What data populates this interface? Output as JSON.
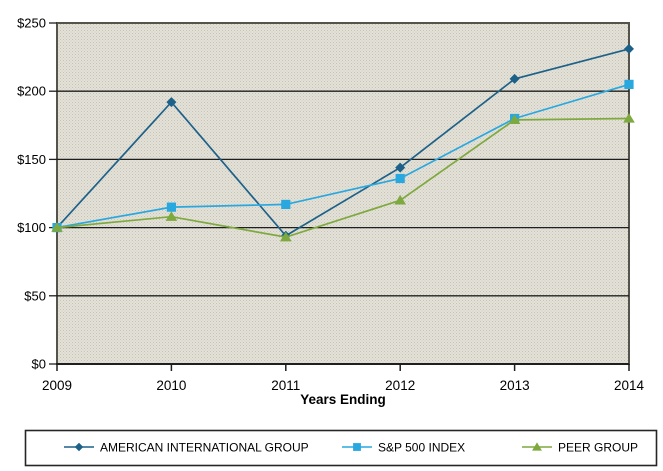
{
  "chart_data": {
    "type": "line",
    "title": "",
    "xlabel": "Years Ending",
    "ylabel": "",
    "categories": [
      "2009",
      "2010",
      "2011",
      "2012",
      "2013",
      "2014"
    ],
    "ylim": [
      0,
      250
    ],
    "y_tick_step": 50,
    "y_tick_labels": [
      "$0",
      "$50",
      "$100",
      "$150",
      "$200",
      "$250"
    ],
    "grid": "horizontal",
    "legend_position": "bottom",
    "series": [
      {
        "name": "AMERICAN INTERNATIONAL GROUP",
        "marker": "diamond",
        "color": "#1D6189",
        "values": [
          100,
          192,
          94,
          144,
          209,
          231
        ]
      },
      {
        "name": "S&P 500 INDEX",
        "marker": "square",
        "color": "#29A8E0",
        "values": [
          100,
          115,
          117,
          136,
          180,
          205
        ]
      },
      {
        "name": "PEER GROUP",
        "marker": "triangle",
        "color": "#7EA93F",
        "values": [
          100,
          108,
          93,
          120,
          179,
          180
        ]
      }
    ],
    "colors": {
      "plot_background": "#DBD8CE",
      "plot_border": "#55544B",
      "gridline": "#1F1F1F",
      "legend_border": "#262626"
    }
  }
}
